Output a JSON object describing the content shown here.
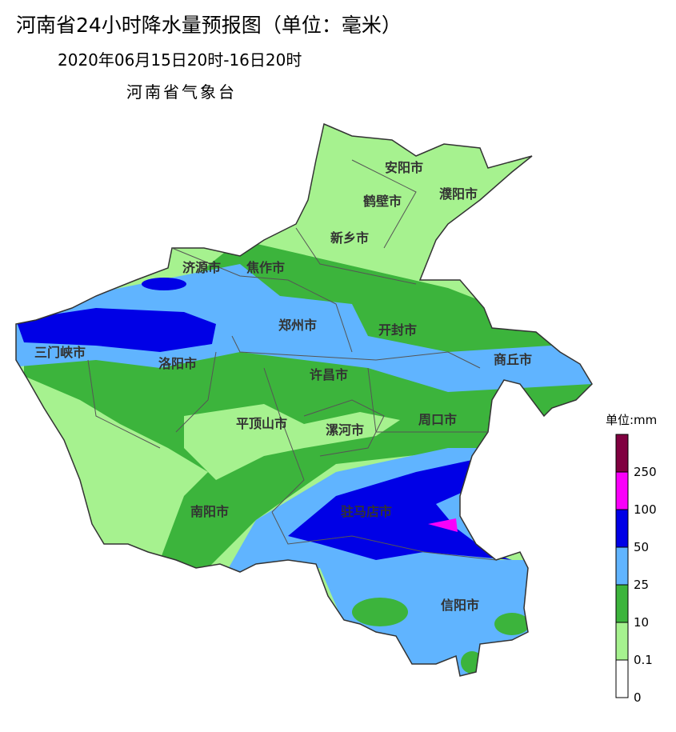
{
  "header": {
    "title": "河南省24小时降水量预报图（单位：毫米）",
    "subtitle": "2020年06月15日20时-16日20时",
    "agency": "河南省气象台"
  },
  "cities": [
    "安阳市",
    "鹤壁市",
    "濮阳市",
    "新乡市",
    "济源市",
    "焦作市",
    "郑州市",
    "开封市",
    "三门峡市",
    "洛阳市",
    "商丘市",
    "许昌市",
    "平顶山市",
    "漯河市",
    "周口市",
    "南阳市",
    "驻马店市",
    "信阳市"
  ],
  "legend": {
    "title": "单位:mm",
    "labels": [
      "250",
      "100",
      "50",
      "25",
      "10",
      "0.1",
      "0"
    ],
    "colors": [
      "#800040",
      "#fa00fa",
      "#0000e6",
      "#60b4ff",
      "#3cb43c",
      "#a6f28f",
      "#ffffff"
    ]
  }
}
